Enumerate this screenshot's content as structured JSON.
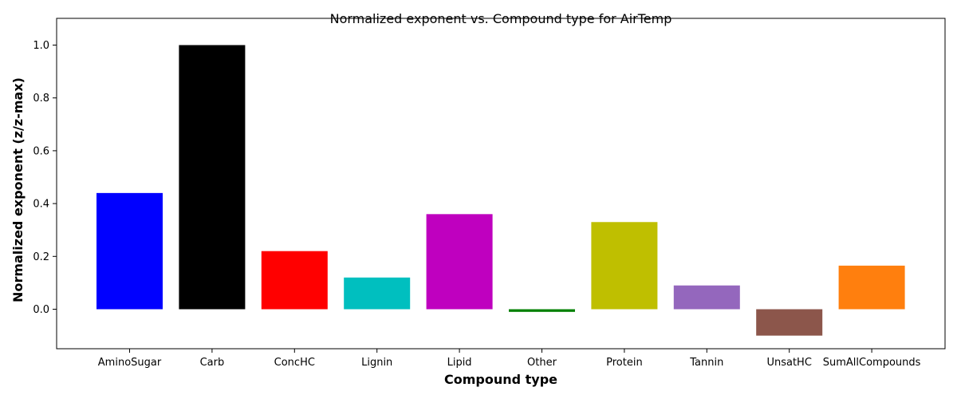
{
  "chart_data": {
    "type": "bar",
    "title": "Normalized exponent vs. Compound type for AirTemp",
    "xlabel": "Compound type",
    "ylabel": "Normalized exponent (z/z-max)",
    "categories": [
      "AminoSugar",
      "Carb",
      "ConcHC",
      "Lignin",
      "Lipid",
      "Other",
      "Protein",
      "Tannin",
      "UnsatHC",
      "SumAllCompounds"
    ],
    "values": [
      0.44,
      1.0,
      0.22,
      0.12,
      0.36,
      -0.01,
      0.33,
      0.09,
      -0.1,
      0.165
    ],
    "colors": [
      "#0000ff",
      "#000000",
      "#ff0000",
      "#00bfbf",
      "#bf00bf",
      "#008000",
      "#bfbf00",
      "#9467bd",
      "#8c564b",
      "#ff7f0e"
    ],
    "ylim": [
      -0.15,
      1.05
    ],
    "yticks": [
      0.0,
      0.2,
      0.4,
      0.6,
      0.8,
      1.0
    ],
    "ytick_labels": [
      "0.0",
      "0.2",
      "0.4",
      "0.6",
      "0.8",
      "1.0"
    ],
    "grid": false,
    "legend": "none"
  }
}
